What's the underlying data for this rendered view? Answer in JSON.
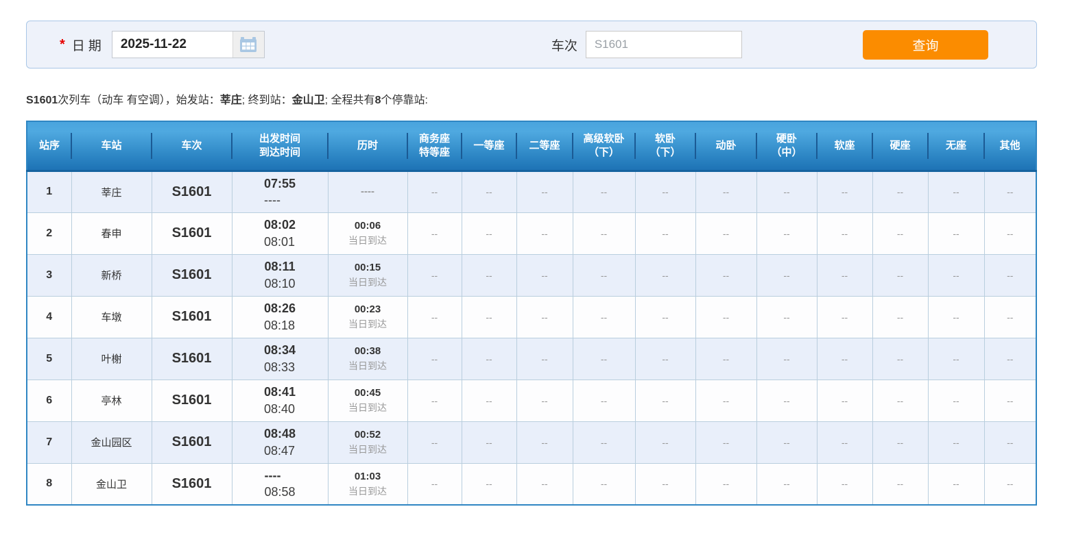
{
  "colors": {
    "accent": "#fb8c00",
    "header_blue_top": "#4aa4de",
    "header_blue_bottom": "#1e73b5",
    "row_alt": "#e9effa",
    "table_border": "#2f86c3",
    "panel_bg": "#eef2fa",
    "panel_border": "#a9c7e7"
  },
  "search_form": {
    "required_mark": "*",
    "date_label": "日期",
    "date_value": "2025-11-22",
    "calendar_icon": "calendar-icon",
    "train_label": "车次",
    "train_placeholder": "S1601",
    "query_button": "查询"
  },
  "summary": {
    "train_no": "S1601",
    "seg1": "次列车（动车 有空调），始发站：",
    "origin": "莘庄",
    "seg2": "; 终到站：",
    "destination": "金山卫",
    "seg3": "; 全程共有",
    "stop_count": "8",
    "seg4": "个停靠站:"
  },
  "table": {
    "headers": [
      {
        "l1": "站序",
        "l2": ""
      },
      {
        "l1": "车站",
        "l2": ""
      },
      {
        "l1": "车次",
        "l2": ""
      },
      {
        "l1": "出发时间",
        "l2": "到达时间"
      },
      {
        "l1": "历时",
        "l2": ""
      },
      {
        "l1": "商务座",
        "l2": "特等座"
      },
      {
        "l1": "一等座",
        "l2": ""
      },
      {
        "l1": "二等座",
        "l2": ""
      },
      {
        "l1": "高级软卧",
        "l2": "（下）"
      },
      {
        "l1": "软卧",
        "l2": "（下）"
      },
      {
        "l1": "动卧",
        "l2": ""
      },
      {
        "l1": "硬卧",
        "l2": "（中）"
      },
      {
        "l1": "软座",
        "l2": ""
      },
      {
        "l1": "硬座",
        "l2": ""
      },
      {
        "l1": "无座",
        "l2": ""
      },
      {
        "l1": "其他",
        "l2": ""
      }
    ],
    "rows": [
      {
        "seq": "1",
        "station": "莘庄",
        "train": "S1601",
        "depart": "07:55",
        "arrive": "----",
        "duration": "----",
        "arrival_day": "",
        "seats": [
          "--",
          "--",
          "--",
          "--",
          "--",
          "--",
          "--",
          "--",
          "--",
          "--",
          "--"
        ]
      },
      {
        "seq": "2",
        "station": "春申",
        "train": "S1601",
        "depart": "08:02",
        "arrive": "08:01",
        "duration": "00:06",
        "arrival_day": "当日到达",
        "seats": [
          "--",
          "--",
          "--",
          "--",
          "--",
          "--",
          "--",
          "--",
          "--",
          "--",
          "--"
        ]
      },
      {
        "seq": "3",
        "station": "新桥",
        "train": "S1601",
        "depart": "08:11",
        "arrive": "08:10",
        "duration": "00:15",
        "arrival_day": "当日到达",
        "seats": [
          "--",
          "--",
          "--",
          "--",
          "--",
          "--",
          "--",
          "--",
          "--",
          "--",
          "--"
        ]
      },
      {
        "seq": "4",
        "station": "车墩",
        "train": "S1601",
        "depart": "08:26",
        "arrive": "08:18",
        "duration": "00:23",
        "arrival_day": "当日到达",
        "seats": [
          "--",
          "--",
          "--",
          "--",
          "--",
          "--",
          "--",
          "--",
          "--",
          "--",
          "--"
        ]
      },
      {
        "seq": "5",
        "station": "叶榭",
        "train": "S1601",
        "depart": "08:34",
        "arrive": "08:33",
        "duration": "00:38",
        "arrival_day": "当日到达",
        "seats": [
          "--",
          "--",
          "--",
          "--",
          "--",
          "--",
          "--",
          "--",
          "--",
          "--",
          "--"
        ]
      },
      {
        "seq": "6",
        "station": "亭林",
        "train": "S1601",
        "depart": "08:41",
        "arrive": "08:40",
        "duration": "00:45",
        "arrival_day": "当日到达",
        "seats": [
          "--",
          "--",
          "--",
          "--",
          "--",
          "--",
          "--",
          "--",
          "--",
          "--",
          "--"
        ]
      },
      {
        "seq": "7",
        "station": "金山园区",
        "train": "S1601",
        "depart": "08:48",
        "arrive": "08:47",
        "duration": "00:52",
        "arrival_day": "当日到达",
        "seats": [
          "--",
          "--",
          "--",
          "--",
          "--",
          "--",
          "--",
          "--",
          "--",
          "--",
          "--"
        ]
      },
      {
        "seq": "8",
        "station": "金山卫",
        "train": "S1601",
        "depart": "----",
        "arrive": "08:58",
        "duration": "01:03",
        "arrival_day": "当日到达",
        "seats": [
          "--",
          "--",
          "--",
          "--",
          "--",
          "--",
          "--",
          "--",
          "--",
          "--",
          "--"
        ]
      }
    ]
  }
}
